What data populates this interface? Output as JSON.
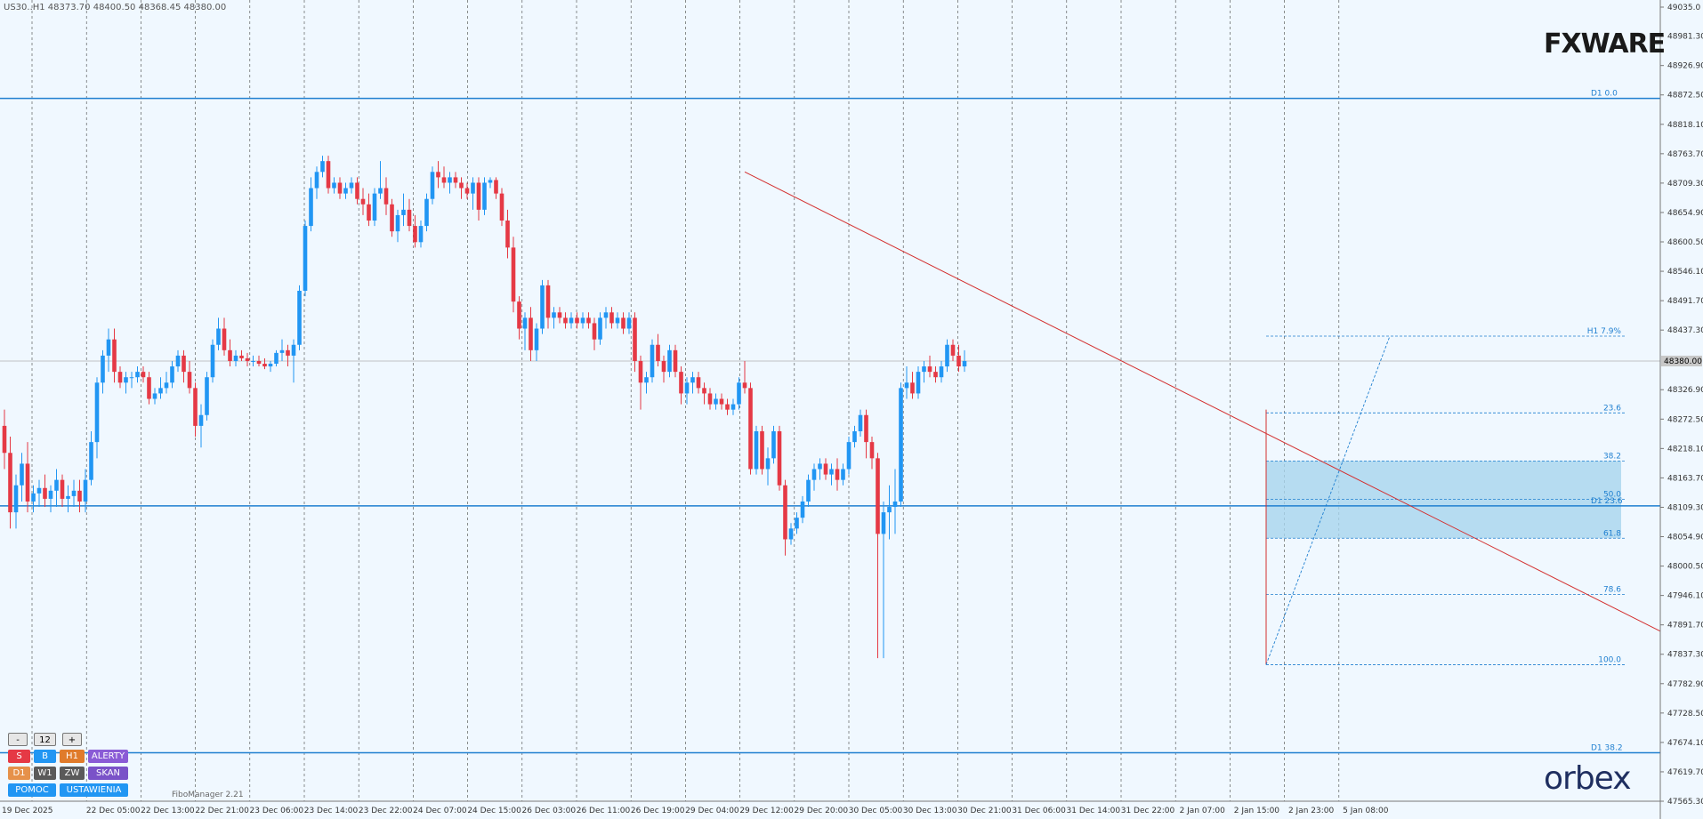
{
  "header": {
    "info": "US30..H1   48373.70 48400.50 48368.45 48380.00"
  },
  "logos": {
    "fxware": "FXWARE",
    "orbex": "orbex"
  },
  "panel": {
    "minus": "-",
    "count": "12",
    "plus": "+",
    "row1": [
      "S",
      "B",
      "H1",
      "ALERTY"
    ],
    "row2": [
      "D1",
      "W1",
      "ZW",
      "SKAN"
    ],
    "row3": [
      "POMOC",
      "USTAWIENIA"
    ],
    "footer": "FiboManager 2.21"
  },
  "colors": {
    "bull": "#2196f3",
    "bear": "#e53945",
    "zone": "#a8d4ee",
    "level": "#1f7fd0",
    "trend": "#d32f2f",
    "grid": "#444444"
  },
  "chart_data": {
    "type": "candlestick",
    "symbol": "US30..H1",
    "ohlc_current": {
      "open": 48373.7,
      "high": 48400.5,
      "low": 48368.45,
      "close": 48380.0
    },
    "ylim": [
      47565.3,
      49035.0
    ],
    "y_ticks": [
      "49035.0",
      "48981.30",
      "48926.90",
      "48872.50",
      "48818.10",
      "48763.70",
      "48709.30",
      "48654.90",
      "48600.50",
      "48546.10",
      "48491.70",
      "48437.30",
      "48326.90",
      "48272.50",
      "48218.10",
      "48163.70",
      "48109.30",
      "48054.90",
      "48000.50",
      "47946.10",
      "47891.70",
      "47837.30",
      "47782.90",
      "47728.50",
      "47674.10",
      "47619.70",
      "47565.30"
    ],
    "current_price": "48380.00",
    "x_ticks": [
      "19 Dec 2025",
      "22 Dec 05:00",
      "22 Dec 13:00",
      "22 Dec 21:00",
      "23 Dec 06:00",
      "23 Dec 14:00",
      "23 Dec 22:00",
      "24 Dec 07:00",
      "24 Dec 15:00",
      "26 Dec 03:00",
      "26 Dec 11:00",
      "26 Dec 19:00",
      "29 Dec 04:00",
      "29 Dec 12:00",
      "29 Dec 20:00",
      "30 Dec 05:00",
      "30 Dec 13:00",
      "30 Dec 21:00",
      "31 Dec 06:00",
      "31 Dec 14:00",
      "31 Dec 22:00",
      "2 Jan 07:00",
      "2 Jan 15:00",
      "2 Jan 23:00",
      "5 Jan 08:00"
    ],
    "levels": [
      {
        "label": "D1 0.0",
        "price": 48866.0
      },
      {
        "label": "D1 23.6",
        "price": 48112.0
      },
      {
        "label": "D1 38.2",
        "price": 47655.0
      }
    ],
    "fib_h1": [
      {
        "label": "H1 7.9%",
        "price": 48426.0
      },
      {
        "label": "23.6",
        "price": 48284.0
      },
      {
        "label": "38.2",
        "price": 48195.0
      },
      {
        "label": "50.0",
        "price": 48124.0
      },
      {
        "label": "61.8",
        "price": 48052.0
      },
      {
        "label": "78.6",
        "price": 47948.0
      },
      {
        "label": "100.0",
        "price": 47818.0
      }
    ],
    "zone": {
      "top": 48195.0,
      "bottom": 48052.0
    },
    "candles": [
      [
        48260,
        48290,
        48180,
        48210
      ],
      [
        48210,
        48240,
        48070,
        48100
      ],
      [
        48100,
        48170,
        48070,
        48150
      ],
      [
        48150,
        48210,
        48120,
        48190
      ],
      [
        48190,
        48230,
        48100,
        48120
      ],
      [
        48120,
        48150,
        48100,
        48135
      ],
      [
        48135,
        48160,
        48110,
        48145
      ],
      [
        48145,
        48170,
        48110,
        48125
      ],
      [
        48125,
        48150,
        48100,
        48140
      ],
      [
        48140,
        48180,
        48110,
        48160
      ],
      [
        48160,
        48170,
        48110,
        48125
      ],
      [
        48125,
        48150,
        48100,
        48130
      ],
      [
        48130,
        48160,
        48110,
        48140
      ],
      [
        48140,
        48160,
        48100,
        48120
      ],
      [
        48120,
        48180,
        48100,
        48160
      ],
      [
        48160,
        48250,
        48150,
        48230
      ],
      [
        48230,
        48350,
        48200,
        48340
      ],
      [
        48340,
        48400,
        48320,
        48390
      ],
      [
        48390,
        48440,
        48360,
        48420
      ],
      [
        48420,
        48440,
        48340,
        48360
      ],
      [
        48360,
        48370,
        48330,
        48340
      ],
      [
        48340,
        48360,
        48320,
        48350
      ],
      [
        48350,
        48360,
        48330,
        48350
      ],
      [
        48350,
        48370,
        48340,
        48360
      ],
      [
        48360,
        48370,
        48340,
        48350
      ],
      [
        48350,
        48360,
        48300,
        48310
      ],
      [
        48310,
        48330,
        48300,
        48320
      ],
      [
        48320,
        48350,
        48310,
        48330
      ],
      [
        48330,
        48360,
        48320,
        48340
      ],
      [
        48340,
        48380,
        48330,
        48370
      ],
      [
        48370,
        48400,
        48360,
        48390
      ],
      [
        48390,
        48400,
        48340,
        48360
      ],
      [
        48360,
        48380,
        48320,
        48330
      ],
      [
        48330,
        48340,
        48240,
        48260
      ],
      [
        48260,
        48300,
        48220,
        48280
      ],
      [
        48280,
        48360,
        48270,
        48350
      ],
      [
        48350,
        48420,
        48340,
        48410
      ],
      [
        48410,
        48460,
        48400,
        48440
      ],
      [
        48440,
        48460,
        48390,
        48400
      ],
      [
        48400,
        48420,
        48370,
        48380
      ],
      [
        48380,
        48400,
        48370,
        48390
      ],
      [
        48390,
        48400,
        48380,
        48385
      ],
      [
        48385,
        48395,
        48370,
        48380
      ],
      [
        48380,
        48390,
        48370,
        48380
      ],
      [
        48380,
        48390,
        48370,
        48375
      ],
      [
        48375,
        48385,
        48365,
        48370
      ],
      [
        48370,
        48380,
        48360,
        48375
      ],
      [
        48375,
        48400,
        48370,
        48395
      ],
      [
        48395,
        48420,
        48380,
        48400
      ],
      [
        48400,
        48410,
        48370,
        48390
      ],
      [
        48390,
        48420,
        48340,
        48410
      ],
      [
        48410,
        48520,
        48400,
        48510
      ],
      [
        48510,
        48640,
        48500,
        48630
      ],
      [
        48630,
        48720,
        48620,
        48700
      ],
      [
        48700,
        48740,
        48680,
        48730
      ],
      [
        48730,
        48760,
        48720,
        48750
      ],
      [
        48750,
        48760,
        48690,
        48700
      ],
      [
        48700,
        48720,
        48690,
        48710
      ],
      [
        48710,
        48720,
        48680,
        48690
      ],
      [
        48690,
        48710,
        48680,
        48700
      ],
      [
        48700,
        48720,
        48690,
        48710
      ],
      [
        48710,
        48720,
        48670,
        48680
      ],
      [
        48680,
        48700,
        48650,
        48670
      ],
      [
        48670,
        48690,
        48630,
        48640
      ],
      [
        48640,
        48700,
        48630,
        48690
      ],
      [
        48690,
        48750,
        48680,
        48700
      ],
      [
        48700,
        48720,
        48650,
        48670
      ],
      [
        48670,
        48680,
        48610,
        48620
      ],
      [
        48620,
        48660,
        48600,
        48650
      ],
      [
        48650,
        48690,
        48630,
        48660
      ],
      [
        48660,
        48680,
        48620,
        48630
      ],
      [
        48630,
        48650,
        48590,
        48600
      ],
      [
        48600,
        48640,
        48590,
        48630
      ],
      [
        48630,
        48690,
        48620,
        48680
      ],
      [
        48680,
        48740,
        48670,
        48730
      ],
      [
        48730,
        48750,
        48700,
        48720
      ],
      [
        48720,
        48740,
        48700,
        48710
      ],
      [
        48710,
        48730,
        48690,
        48720
      ],
      [
        48720,
        48730,
        48700,
        48710
      ],
      [
        48710,
        48720,
        48680,
        48700
      ],
      [
        48700,
        48710,
        48680,
        48690
      ],
      [
        48690,
        48720,
        48660,
        48710
      ],
      [
        48710,
        48720,
        48640,
        48660
      ],
      [
        48660,
        48720,
        48650,
        48710
      ],
      [
        48710,
        48720,
        48700,
        48715
      ],
      [
        48715,
        48720,
        48680,
        48690
      ],
      [
        48690,
        48700,
        48630,
        48640
      ],
      [
        48640,
        48660,
        48570,
        48590
      ],
      [
        48590,
        48610,
        48470,
        48490
      ],
      [
        48490,
        48500,
        48420,
        48440
      ],
      [
        48440,
        48470,
        48400,
        48460
      ],
      [
        48460,
        48480,
        48380,
        48400
      ],
      [
        48400,
        48450,
        48380,
        48440
      ],
      [
        48440,
        48530,
        48430,
        48520
      ],
      [
        48520,
        48530,
        48440,
        48460
      ],
      [
        48460,
        48480,
        48440,
        48470
      ],
      [
        48470,
        48480,
        48450,
        48460
      ],
      [
        48460,
        48470,
        48440,
        48450
      ],
      [
        48450,
        48470,
        48440,
        48460
      ],
      [
        48460,
        48470,
        48440,
        48450
      ],
      [
        48450,
        48470,
        48440,
        48460
      ],
      [
        48460,
        48470,
        48440,
        48450
      ],
      [
        48450,
        48460,
        48400,
        48420
      ],
      [
        48420,
        48470,
        48410,
        48460
      ],
      [
        48460,
        48480,
        48440,
        48470
      ],
      [
        48470,
        48480,
        48440,
        48450
      ],
      [
        48450,
        48470,
        48440,
        48460
      ],
      [
        48460,
        48470,
        48430,
        48440
      ],
      [
        48440,
        48470,
        48430,
        48460
      ],
      [
        48460,
        48470,
        48360,
        48380
      ],
      [
        48380,
        48390,
        48290,
        48340
      ],
      [
        48340,
        48360,
        48320,
        48350
      ],
      [
        48350,
        48420,
        48340,
        48410
      ],
      [
        48410,
        48430,
        48370,
        48380
      ],
      [
        48380,
        48390,
        48340,
        48360
      ],
      [
        48360,
        48410,
        48350,
        48400
      ],
      [
        48400,
        48410,
        48350,
        48360
      ],
      [
        48360,
        48370,
        48300,
        48320
      ],
      [
        48320,
        48350,
        48300,
        48340
      ],
      [
        48340,
        48360,
        48320,
        48350
      ],
      [
        48350,
        48360,
        48320,
        48330
      ],
      [
        48330,
        48340,
        48300,
        48320
      ],
      [
        48320,
        48330,
        48290,
        48300
      ],
      [
        48300,
        48320,
        48290,
        48310
      ],
      [
        48310,
        48320,
        48290,
        48300
      ],
      [
        48300,
        48310,
        48280,
        48290
      ],
      [
        48290,
        48310,
        48280,
        48300
      ],
      [
        48300,
        48350,
        48290,
        48340
      ],
      [
        48340,
        48380,
        48320,
        48330
      ],
      [
        48330,
        48340,
        48170,
        48180
      ],
      [
        48180,
        48260,
        48170,
        48250
      ],
      [
        48250,
        48260,
        48170,
        48180
      ],
      [
        48180,
        48220,
        48150,
        48200
      ],
      [
        48200,
        48260,
        48190,
        48250
      ],
      [
        48250,
        48260,
        48140,
        48150
      ],
      [
        48150,
        48160,
        48020,
        48050
      ],
      [
        48050,
        48080,
        48040,
        48070
      ],
      [
        48070,
        48100,
        48060,
        48090
      ],
      [
        48090,
        48130,
        48080,
        48120
      ],
      [
        48120,
        48170,
        48110,
        48160
      ],
      [
        48160,
        48190,
        48140,
        48180
      ],
      [
        48180,
        48200,
        48160,
        48190
      ],
      [
        48190,
        48200,
        48160,
        48170
      ],
      [
        48170,
        48190,
        48150,
        48180
      ],
      [
        48180,
        48200,
        48140,
        48160
      ],
      [
        48160,
        48190,
        48150,
        48180
      ],
      [
        48180,
        48240,
        48170,
        48230
      ],
      [
        48230,
        48260,
        48220,
        48250
      ],
      [
        48250,
        48290,
        48240,
        48280
      ],
      [
        48280,
        48290,
        48200,
        48230
      ],
      [
        48230,
        48240,
        48180,
        48200
      ],
      [
        48200,
        48210,
        47830,
        48060
      ],
      [
        48060,
        48120,
        47830,
        48100
      ],
      [
        48100,
        48150,
        48050,
        48110
      ],
      [
        48110,
        48180,
        48060,
        48120
      ],
      [
        48120,
        48340,
        48110,
        48330
      ],
      [
        48330,
        48370,
        48310,
        48340
      ],
      [
        48340,
        48360,
        48310,
        48320
      ],
      [
        48320,
        48370,
        48310,
        48360
      ],
      [
        48360,
        48380,
        48340,
        48370
      ],
      [
        48370,
        48390,
        48350,
        48360
      ],
      [
        48360,
        48370,
        48340,
        48350
      ],
      [
        48350,
        48380,
        48340,
        48370
      ],
      [
        48370,
        48420,
        48360,
        48410
      ],
      [
        48410,
        48420,
        48380,
        48390
      ],
      [
        48390,
        48410,
        48360,
        48370
      ],
      [
        48370,
        48400,
        48360,
        48380
      ]
    ]
  }
}
